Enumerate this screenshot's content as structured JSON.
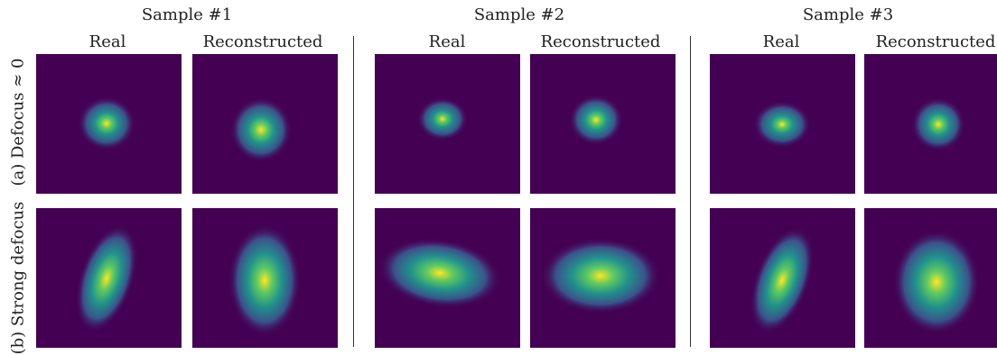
{
  "samples": [
    {
      "title": "Sample #1",
      "real": "Real",
      "recon": "Reconstructed"
    },
    {
      "title": "Sample #2",
      "real": "Real",
      "recon": "Reconstructed"
    },
    {
      "title": "Sample #3",
      "real": "Real",
      "recon": "Reconstructed"
    }
  ],
  "rows": {
    "a": "(a) Defocus ≈ 0",
    "b": "(b) Strong defocus"
  },
  "colormap": [
    "#440154",
    "#3b528b",
    "#21918c",
    "#5ec962",
    "#fde725"
  ]
}
